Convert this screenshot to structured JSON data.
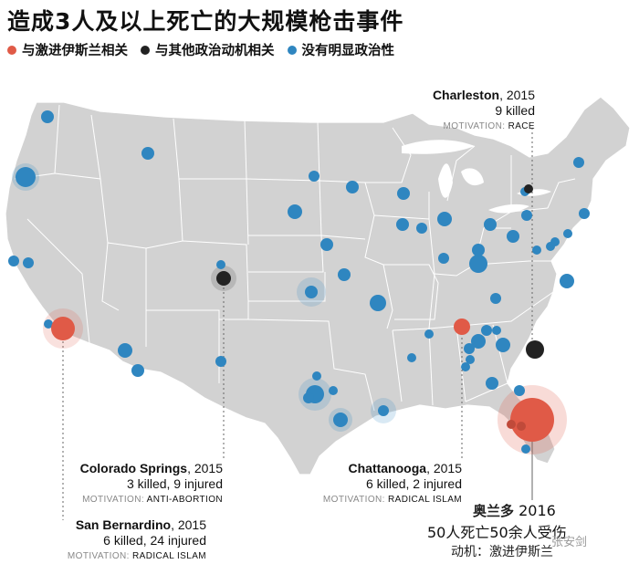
{
  "title": "造成3人及以上死亡的大规模枪击事件",
  "legend": [
    {
      "label": "与激进伊斯兰相关",
      "color": "#e05a47"
    },
    {
      "label": "与其他政治动机相关",
      "color": "#222222"
    },
    {
      "label": "没有明显政治性",
      "color": "#2f86c0"
    }
  ],
  "labels": {
    "charleston": {
      "city": "Charleston",
      "year": "2015",
      "stat": "9 killed",
      "mot_prefix": "MOTIVATION:",
      "mot": "RACE"
    },
    "colorado": {
      "city": "Colorado Springs",
      "year": "2015",
      "stat": "3 killed, 9 injured",
      "mot_prefix": "MOTIVATION:",
      "mot": "ANTI-ABORTION"
    },
    "sanbern": {
      "city": "San Bernardino",
      "year": "2015",
      "stat": "6 killed, 24 injured",
      "mot_prefix": "MOTIVATION:",
      "mot": "RADICAL ISLAM"
    },
    "chatt": {
      "city": "Chattanooga",
      "year": "2015",
      "stat": "6 killed, 2 injured",
      "mot_prefix": "MOTIVATION:",
      "mot": "RADICAL ISLAM"
    },
    "orlando": {
      "city": "奥兰多",
      "year": "2016",
      "stat": "50人死亡50余人受伤",
      "mot": "动机：激进伊斯兰"
    }
  },
  "watermark": "张安剑",
  "colors": {
    "land": "#d2d2d2",
    "border": "#ffffff",
    "blue": "#2f86c0",
    "red": "#e05a47",
    "black": "#222222"
  }
}
